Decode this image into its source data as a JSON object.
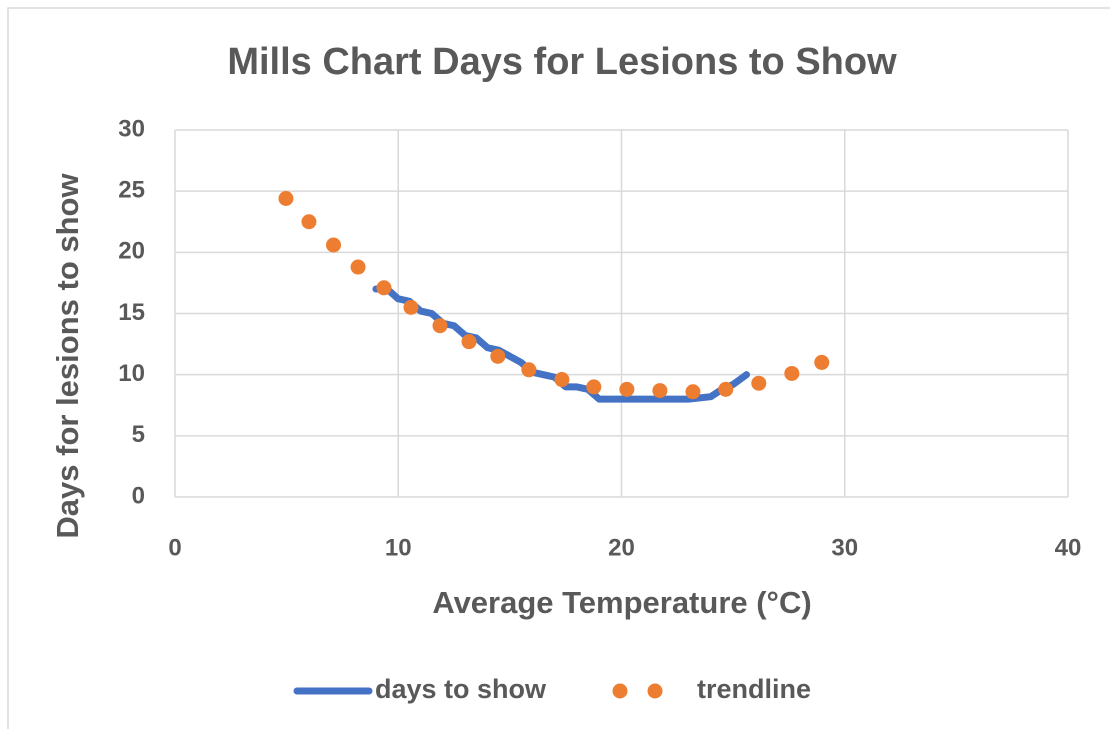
{
  "chart_data": {
    "type": "line_scatter",
    "title": "Mills Chart Days for Lesions to Show",
    "xlabel": "Average Temperature (°C)",
    "ylabel": "Days for lesions to show",
    "xlim": [
      0,
      40
    ],
    "xticks": [
      0,
      10,
      20,
      30,
      40
    ],
    "ylim": [
      0,
      30
    ],
    "yticks": [
      0,
      5,
      10,
      15,
      20,
      25,
      30
    ],
    "grid": true,
    "legend": "bottom",
    "series": [
      {
        "name": "days to show",
        "color": "#4472c4",
        "kind": "line",
        "x": [
          9.0,
          9.5,
          10.0,
          10.5,
          11.0,
          11.5,
          12.0,
          12.5,
          13.0,
          13.5,
          14.0,
          14.5,
          15.0,
          15.5,
          16.0,
          16.5,
          17.0,
          17.5,
          18.0,
          18.5,
          19.0,
          20.0,
          21.0,
          22.0,
          23.0,
          24.0,
          24.5,
          25.0,
          25.6
        ],
        "values": [
          17,
          17,
          16.2,
          16,
          15.2,
          15,
          14.2,
          14,
          13.2,
          13,
          12.2,
          12,
          11.5,
          11,
          10.2,
          10,
          9.8,
          9,
          9,
          8.8,
          8,
          8,
          8,
          8,
          8,
          8.2,
          8.8,
          9.2,
          10
        ]
      },
      {
        "name": "trendline",
        "color": "#ed7d31",
        "kind": "dots",
        "x": [
          4.97,
          6.0,
          7.1,
          8.2,
          9.36,
          10.57,
          11.87,
          13.17,
          14.46,
          15.85,
          17.33,
          18.76,
          20.24,
          21.72,
          23.2,
          24.67,
          26.15,
          27.63,
          28.97
        ],
        "values": [
          24.4,
          22.5,
          20.6,
          18.8,
          17.1,
          15.5,
          14.0,
          12.7,
          11.5,
          10.4,
          9.6,
          9.0,
          8.8,
          8.7,
          8.6,
          8.8,
          9.3,
          10.1,
          11.0
        ]
      }
    ]
  }
}
